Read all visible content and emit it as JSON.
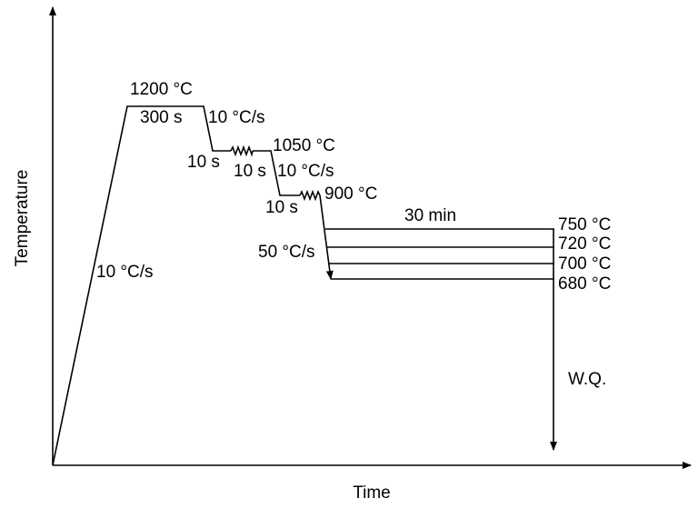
{
  "diagram": {
    "axes": {
      "y_label": "Temperature",
      "x_label": "Time"
    },
    "steps": {
      "austenitize_temp": "1200 °C",
      "austenitize_time": "300 s",
      "heating_rate": "10 °C/s",
      "cool_rate_1": "10 °C/s",
      "hold_1_pre": "10 s",
      "deform_1_time": "10 s",
      "deform_1_temp": "1050 °C",
      "cool_rate_2": "10 °C/s",
      "hold_2_pre": "10 s",
      "deform_2_temp": "900 °C",
      "cool_rate_3": "50 °C/s",
      "isothermal_time": "30 min",
      "iso_temps": [
        "750 °C",
        "720 °C",
        "700 °C",
        "680 °C"
      ],
      "quench": "W.Q."
    }
  }
}
